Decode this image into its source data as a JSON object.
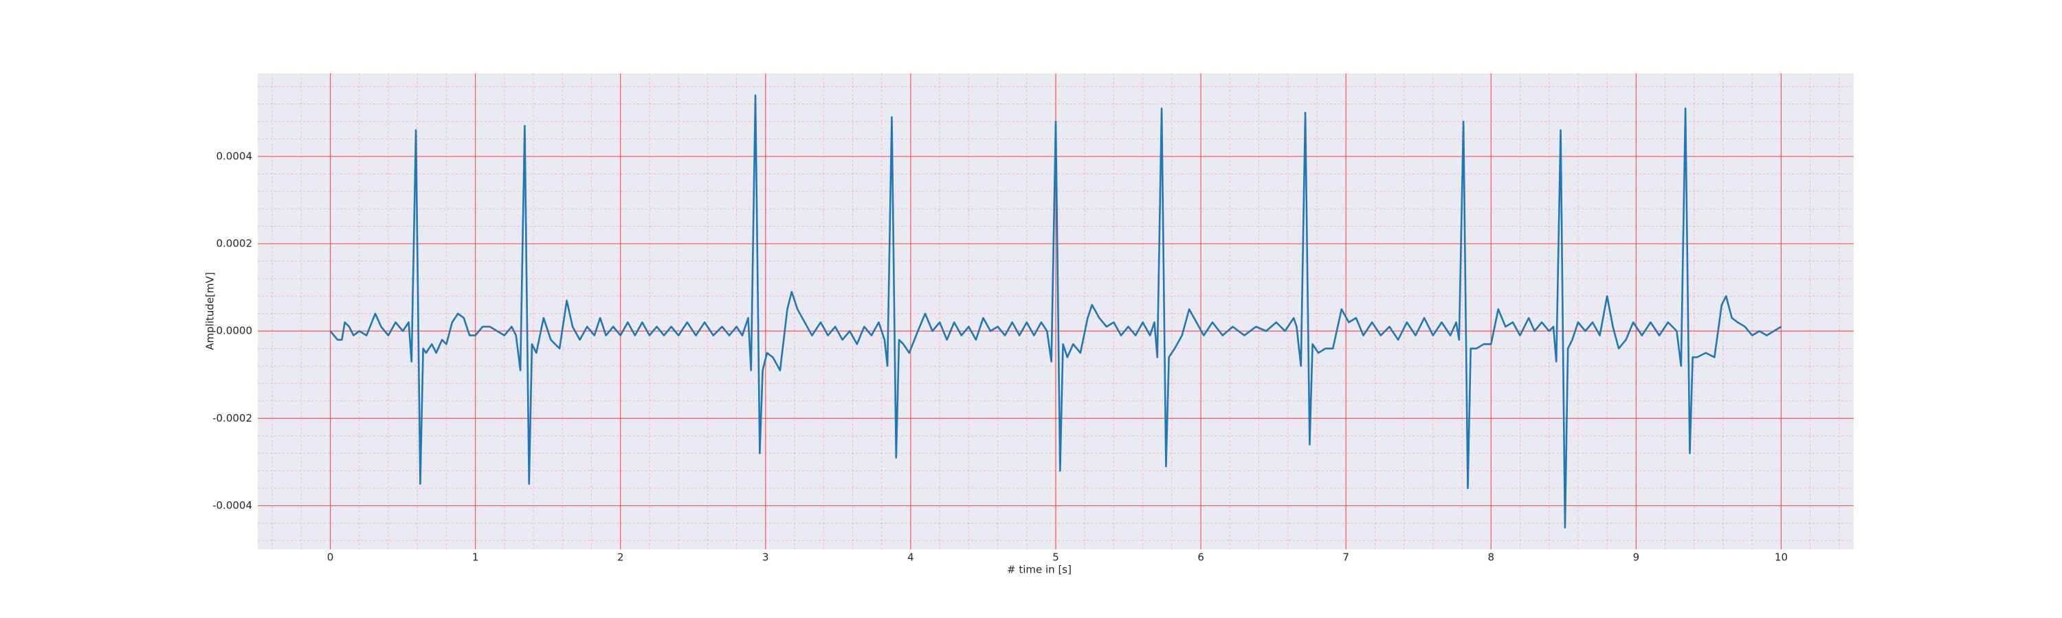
{
  "chart_data": {
    "type": "line",
    "xlabel": "# time in [s]",
    "ylabel": "Amplitude[mV]",
    "grid": true,
    "xlim": [
      -0.5,
      10.5
    ],
    "ylim": [
      -0.0005,
      0.00059
    ],
    "xticks": [
      0,
      1,
      2,
      3,
      4,
      5,
      6,
      7,
      8,
      9,
      10
    ],
    "yticks": [
      -0.0004,
      -0.0002,
      {
        "value": 0,
        "label": "0.0000"
      },
      0.0002,
      0.0004
    ],
    "xminorticks": [
      -0.4,
      -0.2,
      0.2,
      0.4,
      0.6,
      0.8,
      1.2,
      1.4,
      1.6,
      1.8,
      2.2,
      2.4,
      2.6,
      2.8,
      3.2,
      3.4,
      3.6,
      3.8,
      4.2,
      4.4,
      4.6,
      4.8,
      5.2,
      5.4,
      5.6,
      5.8,
      6.2,
      6.4,
      6.6,
      6.8,
      7.2,
      7.4,
      7.6,
      7.8,
      8.2,
      8.4,
      8.6,
      8.8,
      9.2,
      9.4,
      9.6,
      9.8,
      10.2,
      10.4
    ],
    "yminorticks": [
      -0.00048,
      -0.00044,
      -0.00036,
      -0.00032,
      -0.00028,
      -0.00024,
      -0.00016,
      -0.00012,
      -8e-05,
      -4e-05,
      4e-05,
      8e-05,
      0.00012,
      0.00016,
      0.00024,
      0.00028,
      0.00032,
      0.00036,
      0.00044,
      0.00048,
      0.00052,
      0.00056
    ],
    "x": [
      0,
      0.05,
      0.08,
      0.1,
      0.13,
      0.16,
      0.2,
      0.25,
      0.31,
      0.35,
      0.4,
      0.45,
      0.5,
      0.54,
      0.56,
      0.59,
      0.62,
      0.64,
      0.66,
      0.7,
      0.73,
      0.77,
      0.8,
      0.84,
      0.88,
      0.92,
      0.96,
      1.0,
      1.05,
      1.1,
      1.15,
      1.2,
      1.25,
      1.28,
      1.31,
      1.34,
      1.37,
      1.39,
      1.42,
      1.47,
      1.52,
      1.58,
      1.63,
      1.67,
      1.72,
      1.77,
      1.82,
      1.86,
      1.9,
      1.95,
      2.0,
      2.05,
      2.1,
      2.15,
      2.2,
      2.25,
      2.3,
      2.35,
      2.4,
      2.46,
      2.52,
      2.58,
      2.64,
      2.7,
      2.75,
      2.8,
      2.84,
      2.88,
      2.9,
      2.93,
      2.96,
      2.98,
      3.01,
      3.05,
      3.1,
      3.15,
      3.18,
      3.22,
      3.27,
      3.32,
      3.38,
      3.43,
      3.48,
      3.53,
      3.58,
      3.63,
      3.68,
      3.73,
      3.78,
      3.82,
      3.84,
      3.87,
      3.9,
      3.92,
      3.95,
      3.99,
      4.05,
      4.1,
      4.15,
      4.2,
      4.25,
      4.3,
      4.35,
      4.4,
      4.45,
      4.5,
      4.55,
      4.6,
      4.65,
      4.7,
      4.75,
      4.8,
      4.85,
      4.9,
      4.94,
      4.97,
      5.0,
      5.03,
      5.05,
      5.08,
      5.12,
      5.17,
      5.22,
      5.25,
      5.3,
      5.35,
      5.4,
      5.45,
      5.5,
      5.55,
      5.6,
      5.65,
      5.68,
      5.7,
      5.73,
      5.76,
      5.78,
      5.82,
      5.87,
      5.92,
      5.97,
      6.02,
      6.08,
      6.15,
      6.22,
      6.3,
      6.38,
      6.45,
      6.52,
      6.58,
      6.64,
      6.66,
      6.69,
      6.72,
      6.75,
      6.77,
      6.81,
      6.86,
      6.91,
      6.97,
      7.02,
      7.07,
      7.12,
      7.18,
      7.24,
      7.3,
      7.36,
      7.42,
      7.48,
      7.54,
      7.6,
      7.66,
      7.72,
      7.76,
      7.78,
      7.81,
      7.84,
      7.86,
      7.9,
      7.95,
      8.0,
      8.05,
      8.1,
      8.15,
      8.2,
      8.26,
      8.3,
      8.35,
      8.4,
      8.43,
      8.45,
      8.48,
      8.51,
      8.53,
      8.56,
      8.6,
      8.65,
      8.7,
      8.75,
      8.8,
      8.84,
      8.88,
      8.93,
      8.98,
      9.04,
      9.1,
      9.16,
      9.22,
      9.28,
      9.31,
      9.34,
      9.37,
      9.39,
      9.42,
      9.48,
      9.54,
      9.59,
      9.62,
      9.66,
      9.7,
      9.75,
      9.8,
      9.85,
      9.9,
      9.95,
      10.0
    ],
    "series": [
      {
        "color": "#1f77b4",
        "values": [
          0,
          -2e-05,
          -2e-05,
          2e-05,
          1e-05,
          -1e-05,
          0,
          -1e-05,
          4e-05,
          1e-05,
          -1e-05,
          2e-05,
          0,
          2e-05,
          -7e-05,
          0.00046,
          -0.00035,
          -4e-05,
          -5e-05,
          -3e-05,
          -5e-05,
          -2e-05,
          -3e-05,
          2e-05,
          4e-05,
          3e-05,
          -1e-05,
          -1e-05,
          1e-05,
          1e-05,
          0,
          -1e-05,
          1e-05,
          -1e-05,
          -9e-05,
          0.00047,
          -0.00035,
          -3e-05,
          -5e-05,
          3e-05,
          -2e-05,
          -4e-05,
          7e-05,
          1e-05,
          -2e-05,
          1e-05,
          -1e-05,
          3e-05,
          -1e-05,
          1e-05,
          -1e-05,
          2e-05,
          -1e-05,
          2e-05,
          -1e-05,
          1e-05,
          -1e-05,
          1e-05,
          -1e-05,
          2e-05,
          -1e-05,
          2e-05,
          -1e-05,
          1e-05,
          -1e-05,
          1e-05,
          -1e-05,
          3e-05,
          -9e-05,
          0.00054,
          -0.00028,
          -9e-05,
          -5e-05,
          -6e-05,
          -9e-05,
          5e-05,
          9e-05,
          5e-05,
          2e-05,
          -1e-05,
          2e-05,
          -1e-05,
          1e-05,
          -2e-05,
          0,
          -3e-05,
          1e-05,
          -1e-05,
          2e-05,
          -2e-05,
          -8e-05,
          0.00049,
          -0.00029,
          -2e-05,
          -3e-05,
          -5e-05,
          0,
          4e-05,
          0,
          2e-05,
          -2e-05,
          2e-05,
          -1e-05,
          1e-05,
          -2e-05,
          3e-05,
          0,
          1e-05,
          -1e-05,
          2e-05,
          -1e-05,
          2e-05,
          -1e-05,
          2e-05,
          0,
          -7e-05,
          0.00048,
          -0.00032,
          -3e-05,
          -6e-05,
          -3e-05,
          -5e-05,
          3e-05,
          6e-05,
          3e-05,
          1e-05,
          2e-05,
          -1e-05,
          1e-05,
          -1e-05,
          2e-05,
          -1e-05,
          2e-05,
          -6e-05,
          0.00051,
          -0.00031,
          -6e-05,
          -4e-05,
          -1e-05,
          5e-05,
          2e-05,
          -1e-05,
          2e-05,
          -1e-05,
          1e-05,
          -1e-05,
          1e-05,
          0,
          2e-05,
          0,
          3e-05,
          1e-05,
          -8e-05,
          0.0005,
          -0.00026,
          -3e-05,
          -5e-05,
          -4e-05,
          -4e-05,
          5e-05,
          2e-05,
          3e-05,
          -1e-05,
          2e-05,
          -1e-05,
          1e-05,
          -2e-05,
          2e-05,
          -1e-05,
          3e-05,
          -1e-05,
          2e-05,
          -1e-05,
          2e-05,
          -2e-05,
          0.00048,
          -0.00036,
          -4e-05,
          -4e-05,
          -3e-05,
          -3e-05,
          5e-05,
          1e-05,
          2e-05,
          -1e-05,
          3e-05,
          0,
          2e-05,
          0,
          1e-05,
          -7e-05,
          0.00046,
          -0.00045,
          -4e-05,
          -2e-05,
          2e-05,
          0,
          2e-05,
          -1e-05,
          8e-05,
          1e-05,
          -4e-05,
          -2e-05,
          2e-05,
          -1e-05,
          2e-05,
          -1e-05,
          2e-05,
          0,
          -8e-05,
          0.00051,
          -0.00028,
          -6e-05,
          -6e-05,
          -5e-05,
          -6e-05,
          6e-05,
          8e-05,
          3e-05,
          2e-05,
          1e-05,
          -1e-05,
          0,
          -1e-05,
          0,
          1e-05
        ]
      }
    ]
  }
}
